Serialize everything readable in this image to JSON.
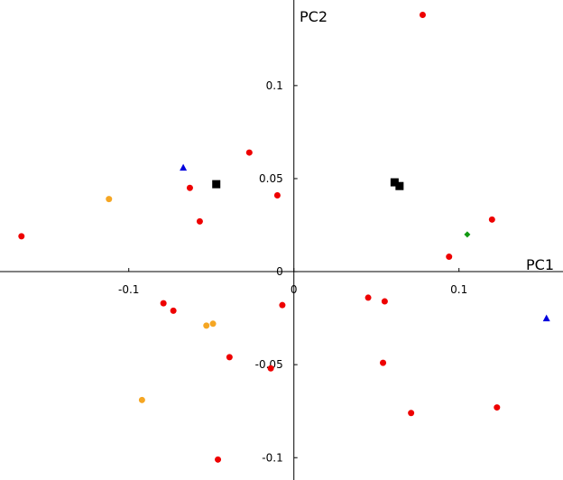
{
  "chart_data": {
    "type": "scatter",
    "xlabel": "PC1",
    "ylabel": "PC2",
    "xlim": [
      -0.178,
      0.163
    ],
    "ylim": [
      -0.112,
      0.146
    ],
    "xticks": [
      -0.1,
      0,
      0.1
    ],
    "yticks": [
      -0.1,
      -0.05,
      0,
      0.05,
      0.1
    ],
    "series": [
      {
        "color": "#ee0000",
        "marker": "circle",
        "x": [
          0.078,
          -0.027,
          -0.063,
          -0.01,
          -0.057,
          -0.165,
          0.12,
          0.094,
          -0.079,
          -0.073,
          -0.007,
          0.045,
          0.055,
          -0.039,
          -0.014,
          0.054,
          0.071,
          0.123,
          -0.046
        ],
        "values": [
          0.138,
          0.064,
          0.045,
          0.041,
          0.027,
          0.019,
          0.028,
          0.008,
          -0.017,
          -0.021,
          -0.018,
          -0.014,
          -0.016,
          -0.046,
          -0.052,
          -0.049,
          -0.076,
          -0.073,
          -0.101
        ]
      },
      {
        "color": "#f5a623",
        "marker": "circle",
        "x": [
          -0.112,
          -0.053,
          -0.049,
          -0.092
        ],
        "values": [
          0.039,
          -0.029,
          -0.028,
          -0.069
        ]
      },
      {
        "color": "#0000dd",
        "marker": "triangle",
        "x": [
          -0.067,
          0.153
        ],
        "values": [
          0.056,
          -0.025
        ]
      },
      {
        "color": "#000000",
        "marker": "square",
        "x": [
          -0.047,
          0.061,
          0.064
        ],
        "values": [
          0.047,
          0.048,
          0.046
        ]
      },
      {
        "color": "#119911",
        "marker": "diamond",
        "x": [
          0.105
        ],
        "values": [
          0.02
        ]
      }
    ]
  }
}
